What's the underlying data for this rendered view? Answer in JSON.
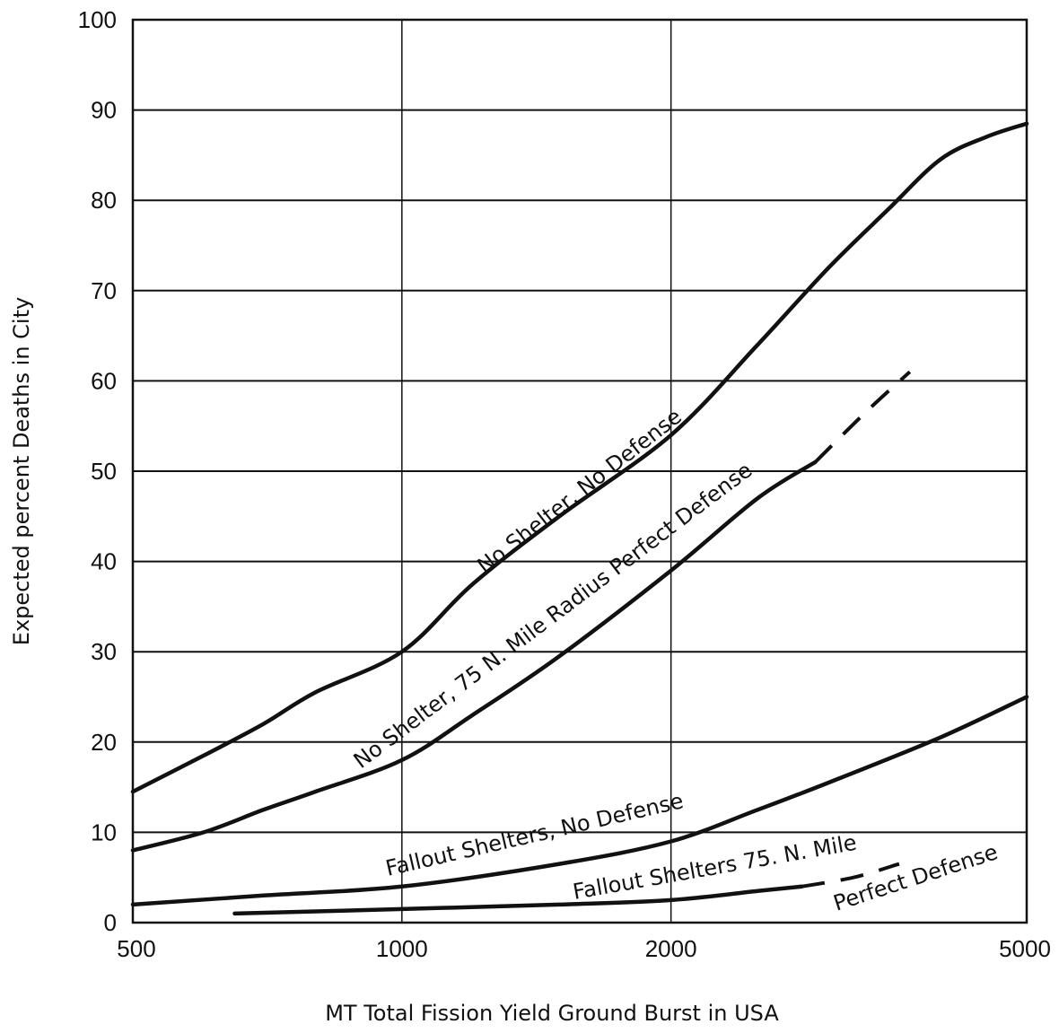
{
  "chart_data": {
    "type": "line",
    "title": "",
    "xlabel": "MT Total Fission Yield Ground Burst in USA",
    "ylabel": "Expected  percent Deaths in City",
    "xscale": "log",
    "xlim": [
      500,
      5000
    ],
    "ylim": [
      0,
      100
    ],
    "grid": "horizontal lines every 10; vertical lines at 1000 and 2000",
    "x_ticks": [
      "500",
      "1000",
      "2000",
      "5000"
    ],
    "y_ticks": [
      "0",
      "10",
      "20",
      "30",
      "40",
      "50",
      "60",
      "70",
      "80",
      "90",
      "100"
    ],
    "series": [
      {
        "name": "No Shelter, No Defense",
        "style": "solid",
        "x": [
          500,
          600,
          700,
          800,
          1000,
          1200,
          1500,
          2000,
          2500,
          3000,
          3500,
          4000,
          4500,
          5000
        ],
        "y": [
          14.5,
          18.5,
          22.0,
          25.5,
          30.0,
          37.5,
          45.0,
          54.0,
          64.0,
          72.5,
          79.0,
          84.5,
          87.0,
          88.5
        ]
      },
      {
        "name": "No Shelter, 75 N. Mile Radius Perfect Defense",
        "style": "solid then dashed",
        "x": [
          500,
          600,
          700,
          800,
          1000,
          1200,
          1500,
          2000,
          2500,
          2900,
          3300,
          3700
        ],
        "y": [
          8.0,
          10.0,
          12.5,
          14.5,
          18.0,
          23.0,
          29.5,
          39.0,
          47.0,
          51.0,
          56.5,
          61.0
        ]
      },
      {
        "name": "Fallout Shelters, No Defense",
        "style": "solid",
        "x": [
          500,
          700,
          1000,
          1500,
          2000,
          2500,
          3000,
          4000,
          5000
        ],
        "y": [
          2.0,
          3.0,
          4.0,
          6.5,
          9.0,
          12.5,
          15.5,
          20.5,
          25.0
        ]
      },
      {
        "name": "Fallout Shelters  75 N. Mile Perfect Defense",
        "style": "solid then dashed",
        "x": [
          650,
          1000,
          1500,
          2000,
          2500,
          2800,
          3200,
          3600
        ],
        "y": [
          1.0,
          1.5,
          2.0,
          2.5,
          3.5,
          4.0,
          5.0,
          6.5
        ]
      }
    ],
    "labels": {
      "curve1": "No Shelter, No Defense",
      "curve2": "No Shelter, 75 N. Mile Radius Perfect Defense",
      "curve3": "Fallout Shelters, No Defense",
      "curve4_a": "Fallout Shelters  75. N. Mile",
      "curve4_b": "Perfect Defense"
    }
  }
}
